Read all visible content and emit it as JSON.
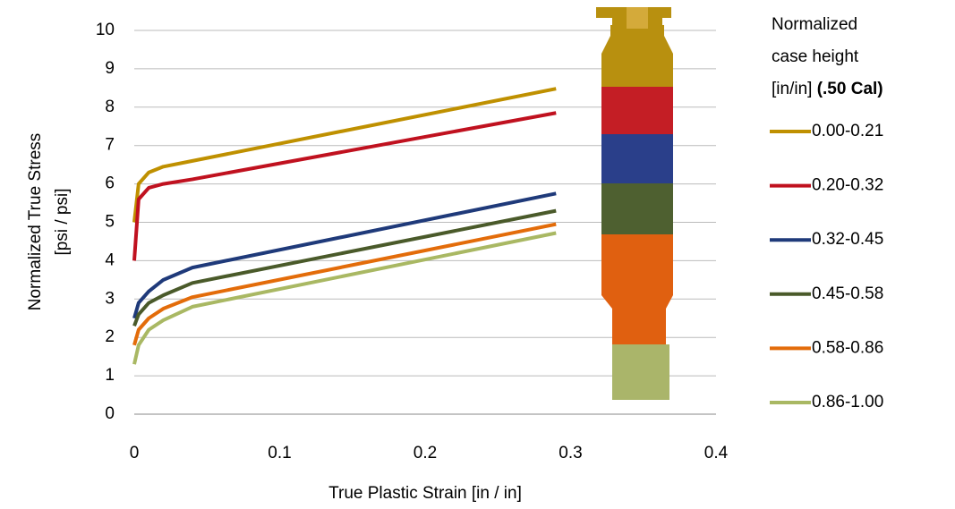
{
  "chart_data": {
    "type": "line",
    "x_label": "True Plastic Strain [in / in]",
    "y_label": [
      "Normalized True Stress",
      "[psi / psi]"
    ],
    "legend_title": {
      "lines": [
        "Normalized",
        "case height",
        "[in/in]"
      ],
      "bold": "(.50 Cal)"
    },
    "x": [
      0,
      0.003,
      0.01,
      0.02,
      0.04,
      0.29
    ],
    "series": [
      {
        "name": "0.00-0.21",
        "color": "#bf9000",
        "values": [
          5.0,
          6.0,
          6.3,
          6.45,
          6.6,
          8.48
        ]
      },
      {
        "name": "0.20-0.32",
        "color": "#c0111f",
        "values": [
          4.0,
          5.6,
          5.9,
          6.0,
          6.12,
          7.85
        ]
      },
      {
        "name": "0.32-0.45",
        "color": "#1f3a7a",
        "values": [
          2.5,
          2.9,
          3.2,
          3.5,
          3.82,
          5.75
        ]
      },
      {
        "name": "0.45-0.58",
        "color": "#4a5a2a",
        "values": [
          2.3,
          2.6,
          2.9,
          3.1,
          3.42,
          5.3
        ]
      },
      {
        "name": "0.58-0.86",
        "color": "#e36c0a",
        "values": [
          1.8,
          2.2,
          2.5,
          2.75,
          3.05,
          4.95
        ]
      },
      {
        "name": "0.86-1.00",
        "color": "#a9b863",
        "values": [
          1.3,
          1.8,
          2.2,
          2.45,
          2.8,
          4.72
        ]
      }
    ],
    "xlim": [
      0,
      0.4
    ],
    "xticks": [
      0,
      0.1,
      0.2,
      0.3,
      0.4
    ],
    "ylim": [
      0,
      10
    ],
    "yticks": [
      0,
      1,
      2,
      3,
      4,
      5,
      6,
      7,
      8,
      9,
      10
    ],
    "grid": true,
    "legend": "right"
  }
}
